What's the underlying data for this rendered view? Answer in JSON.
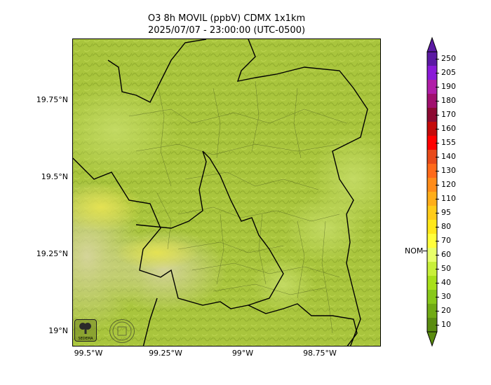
{
  "title": {
    "line1": "O3 8h MOVIL (ppbV) CDMX 1x1km",
    "line2": "2025/07/07 - 23:00:00 (UTC-0500)"
  },
  "map": {
    "lat_ticks": [
      "19.75°N",
      "19.5°N",
      "19.25°N",
      "19°N"
    ],
    "lon_ticks": [
      "99.5°W",
      "99.25°W",
      "99°W",
      "98.75°W"
    ],
    "dominant_fill": "#a6c33a",
    "low_fill": "#d4d35a",
    "high_fill": "#dfe05a"
  },
  "colorbar": {
    "labels": [
      "250",
      "205",
      "190",
      "180",
      "170",
      "160",
      "155",
      "140",
      "130",
      "120",
      "110",
      "95",
      "80",
      "70",
      "60",
      "50",
      "40",
      "30",
      "20",
      "10"
    ],
    "colors": [
      "#5b1aa3",
      "#8a1ad8",
      "#b01ea8",
      "#a0106e",
      "#8c0a32",
      "#c40a0a",
      "#ff0000",
      "#e84a1a",
      "#ff6a1a",
      "#ff8c1a",
      "#ffae1a",
      "#ffcc1a",
      "#ffe81a",
      "#ffff3a",
      "#e8ff6a",
      "#c8f03a",
      "#a8e01a",
      "#88c81a",
      "#70aa14",
      "#5a8c10"
    ],
    "nom_label": "NOM"
  },
  "logos": {
    "sedema_text": "SEDEMA"
  }
}
